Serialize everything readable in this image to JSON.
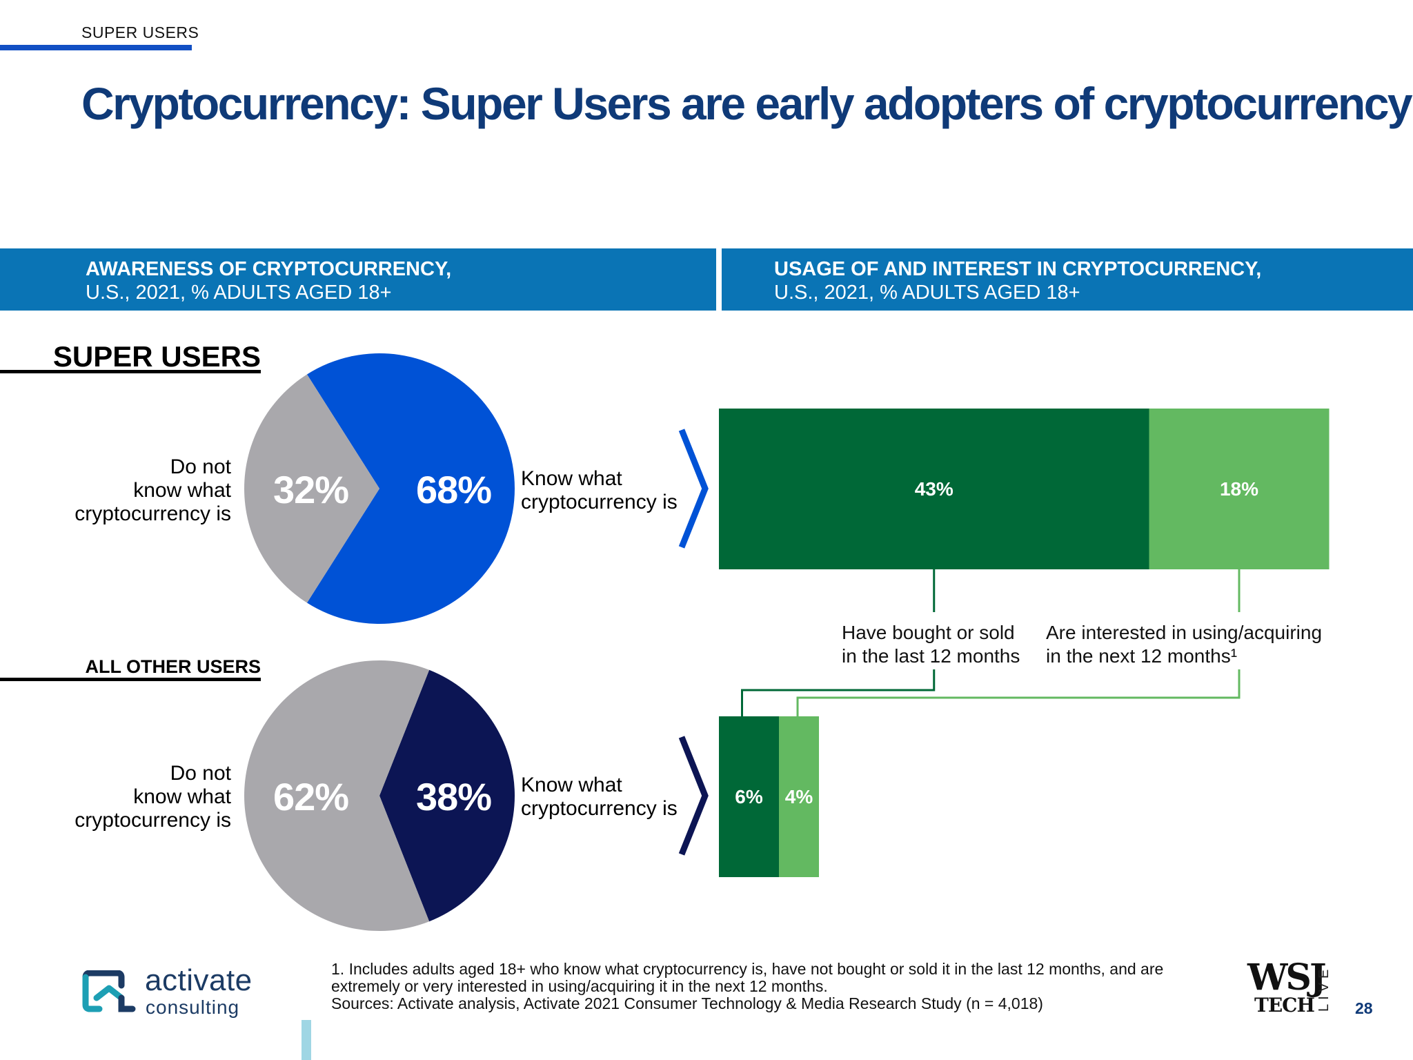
{
  "section_tag": "SUPER USERS",
  "title": "Cryptocurrency: Super Users are early adopters of cryptocurrency",
  "colors": {
    "header_band": "#0a74b5",
    "title": "#0f3a78",
    "super_know": "#0052d6",
    "others_know": "#0c1554",
    "dont_know": "#a9a8ac",
    "bought_sold": "#006837",
    "interested": "#63b961"
  },
  "left_panel": {
    "title_line1": "AWARENESS OF CRYPTOCURRENCY,",
    "title_line2": "U.S., 2021, % ADULTS AGED 18+"
  },
  "right_panel": {
    "title_line1": "USAGE OF AND INTEREST IN CRYPTOCURRENCY,",
    "title_line2": "U.S., 2021, % ADULTS AGED 18+"
  },
  "chart_data": [
    {
      "type": "pie",
      "title": "SUPER USERS",
      "slices": [
        {
          "label": "Know what cryptocurrency is",
          "value": 68,
          "display": "68%",
          "color": "#0052d6"
        },
        {
          "label": "Do not know what cryptocurrency is",
          "value": 32,
          "display": "32%",
          "color": "#a9a8ac"
        }
      ]
    },
    {
      "type": "pie",
      "title": "ALL OTHER USERS",
      "slices": [
        {
          "label": "Know what cryptocurrency is",
          "value": 38,
          "display": "38%",
          "color": "#0c1554"
        },
        {
          "label": "Do not know what cryptocurrency is",
          "value": 62,
          "display": "62%",
          "color": "#a9a8ac"
        }
      ]
    },
    {
      "type": "bar",
      "stacked": true,
      "orientation": "horizontal",
      "categories": [
        "Super Users",
        "All Other Users"
      ],
      "series": [
        {
          "name": "Have bought or sold in the last 12 months",
          "values": [
            43,
            6
          ],
          "display": [
            "43%",
            "6%"
          ],
          "color": "#006837"
        },
        {
          "name": "Are interested in using/acquiring in the next 12 months¹",
          "values": [
            18,
            4
          ],
          "display": [
            "18%",
            "4%"
          ],
          "color": "#63b961"
        }
      ]
    }
  ],
  "labels": {
    "know_line1": "Know what",
    "know_line2": "cryptocurrency is",
    "dont_line1": "Do not",
    "dont_line2": "know what",
    "dont_line3": "cryptocurrency is",
    "bought_line1": "Have bought or sold",
    "bought_line2": "in the last 12 months",
    "interested_line1": "Are interested in using/acquiring",
    "interested_line2": "in the next 12 months¹"
  },
  "footnote": {
    "note1": "1. Includes adults aged 18+ who know what cryptocurrency is, have not bought or sold it in the last 12 months, and are extremely or very interested in using/acquiring it in the next 12 months.",
    "sources": "Sources: Activate analysis, Activate 2021 Consumer Technology & Media Research Study (n = 4,018)"
  },
  "logo": {
    "name": "activate",
    "sub": "consulting"
  },
  "partner_logo": {
    "line1": "WSJ",
    "line2": "TECH",
    "side": "LIVE"
  },
  "page_number": "28"
}
